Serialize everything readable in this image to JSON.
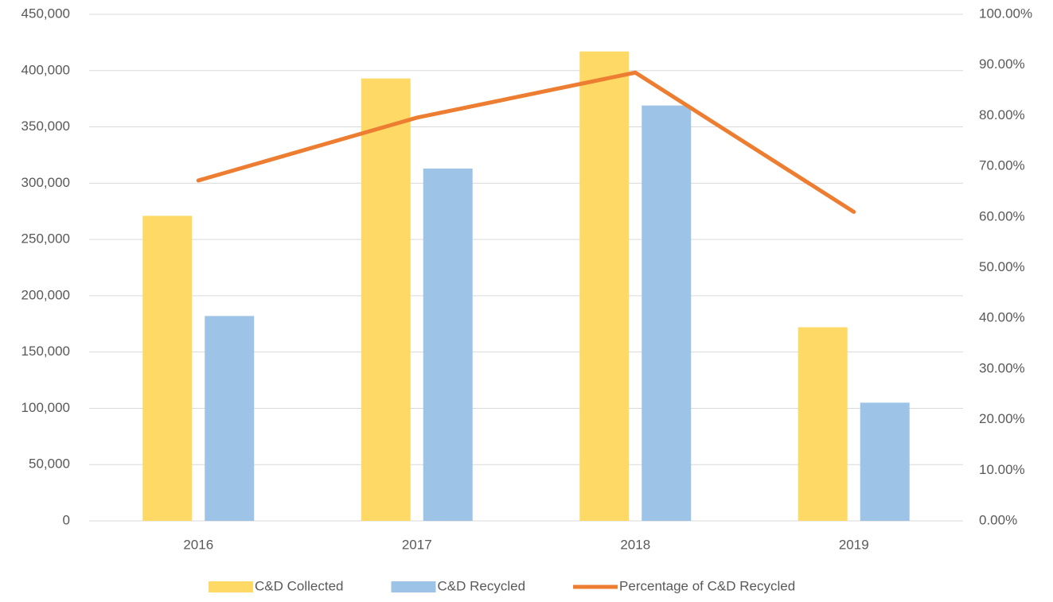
{
  "chart_data": {
    "type": "bar",
    "categories": [
      "2016",
      "2017",
      "2018",
      "2019"
    ],
    "series": [
      {
        "name": "C&D Collected",
        "type": "bar",
        "color": "#ffd966",
        "values": [
          271000,
          393000,
          417000,
          172000
        ]
      },
      {
        "name": "C&D Recycled",
        "type": "bar",
        "color": "#9dc3e6",
        "values": [
          182000,
          313000,
          369000,
          105000
        ]
      },
      {
        "name": "Percentage of C&D Recycled",
        "type": "line",
        "axis": "y2",
        "color": "#ed7d31",
        "values": [
          67.2,
          79.6,
          88.5,
          61.0
        ]
      }
    ],
    "ylim": [
      0,
      450000
    ],
    "yticks": [
      0,
      {
        "value": 50000,
        "label": "50,000"
      },
      {
        "value": 100000,
        "label": "100,000"
      },
      {
        "value": 150000,
        "label": "150,000"
      },
      {
        "value": 200000,
        "label": "200,000"
      },
      {
        "value": 250000,
        "label": "250,000"
      },
      {
        "value": 300000,
        "label": "300,000"
      },
      {
        "value": 350000,
        "label": "350,000"
      },
      {
        "value": 400000,
        "label": "400,000"
      },
      {
        "value": 450000,
        "label": "450,000"
      }
    ],
    "y2lim": [
      0,
      100
    ],
    "y2ticks": [
      {
        "value": 0,
        "label": "0.00%"
      },
      {
        "value": 10,
        "label": "10.00%"
      },
      {
        "value": 20,
        "label": "20.00%"
      },
      {
        "value": 30,
        "label": "30.00%"
      },
      {
        "value": 40,
        "label": "40.00%"
      },
      {
        "value": 50,
        "label": "50.00%"
      },
      {
        "value": 60,
        "label": "60.00%"
      },
      {
        "value": 70,
        "label": "70.00%"
      },
      {
        "value": 80,
        "label": "80.00%"
      },
      {
        "value": 90,
        "label": "90.00%"
      },
      {
        "value": 100,
        "label": "100.00%"
      }
    ],
    "grid": true,
    "legend": "bottom"
  }
}
